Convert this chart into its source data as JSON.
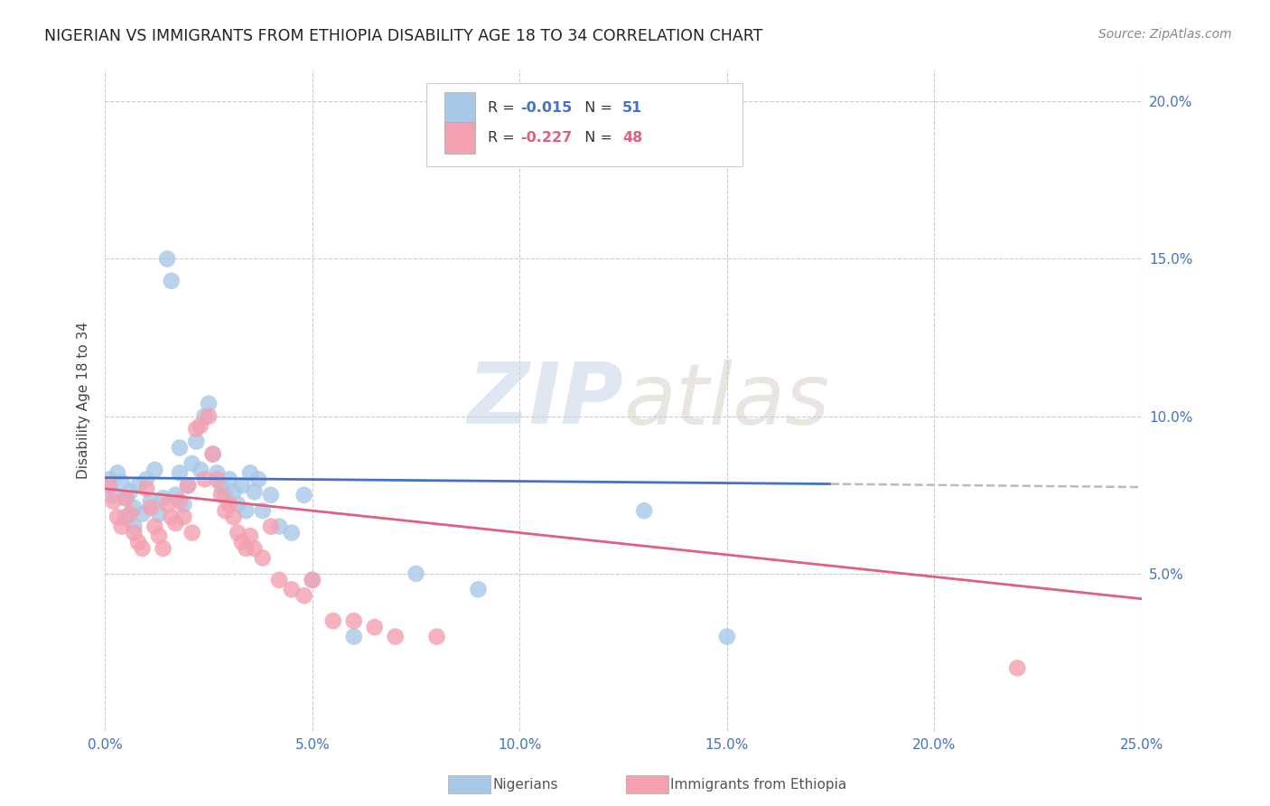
{
  "title": "NIGERIAN VS IMMIGRANTS FROM ETHIOPIA DISABILITY AGE 18 TO 34 CORRELATION CHART",
  "source": "Source: ZipAtlas.com",
  "ylabel": "Disability Age 18 to 34",
  "xlim": [
    0.0,
    0.25
  ],
  "ylim": [
    0.0,
    0.21
  ],
  "xticks": [
    0.0,
    0.05,
    0.1,
    0.15,
    0.2,
    0.25
  ],
  "xticklabels": [
    "0.0%",
    "5.0%",
    "10.0%",
    "15.0%",
    "20.0%",
    "25.0%"
  ],
  "yticks": [
    0.05,
    0.1,
    0.15,
    0.2
  ],
  "yticklabels": [
    "5.0%",
    "10.0%",
    "15.0%",
    "20.0%"
  ],
  "nigerian_color": "#a8c8e8",
  "ethiopia_color": "#f4a0b0",
  "nigerian_line_color": "#4472c4",
  "ethiopia_line_color": "#e06080",
  "dashed_line_color": "#bbbbbb",
  "nigerian_R": -0.015,
  "nigerian_N": 51,
  "ethiopia_R": -0.227,
  "ethiopia_N": 48,
  "legend_label_1": "Nigerians",
  "legend_label_2": "Immigrants from Ethiopia",
  "watermark_zip": "ZIP",
  "watermark_atlas": "atlas",
  "nigerian_x": [
    0.001,
    0.002,
    0.003,
    0.004,
    0.005,
    0.005,
    0.006,
    0.007,
    0.007,
    0.008,
    0.009,
    0.01,
    0.011,
    0.012,
    0.013,
    0.014,
    0.015,
    0.016,
    0.017,
    0.018,
    0.018,
    0.019,
    0.02,
    0.021,
    0.022,
    0.023,
    0.024,
    0.025,
    0.026,
    0.027,
    0.028,
    0.029,
    0.03,
    0.031,
    0.032,
    0.033,
    0.034,
    0.035,
    0.036,
    0.037,
    0.038,
    0.04,
    0.042,
    0.045,
    0.048,
    0.05,
    0.06,
    0.075,
    0.09,
    0.13,
    0.15
  ],
  "nigerian_y": [
    0.08,
    0.075,
    0.082,
    0.079,
    0.074,
    0.068,
    0.076,
    0.071,
    0.065,
    0.078,
    0.069,
    0.08,
    0.073,
    0.083,
    0.069,
    0.074,
    0.15,
    0.143,
    0.075,
    0.082,
    0.09,
    0.072,
    0.078,
    0.085,
    0.092,
    0.083,
    0.1,
    0.104,
    0.088,
    0.082,
    0.078,
    0.075,
    0.08,
    0.076,
    0.072,
    0.078,
    0.07,
    0.082,
    0.076,
    0.08,
    0.07,
    0.075,
    0.065,
    0.063,
    0.075,
    0.048,
    0.03,
    0.05,
    0.045,
    0.07,
    0.03
  ],
  "ethiopia_x": [
    0.001,
    0.002,
    0.003,
    0.004,
    0.005,
    0.006,
    0.007,
    0.008,
    0.009,
    0.01,
    0.011,
    0.012,
    0.013,
    0.014,
    0.015,
    0.016,
    0.017,
    0.018,
    0.019,
    0.02,
    0.021,
    0.022,
    0.023,
    0.024,
    0.025,
    0.026,
    0.027,
    0.028,
    0.029,
    0.03,
    0.031,
    0.032,
    0.033,
    0.034,
    0.035,
    0.036,
    0.038,
    0.04,
    0.042,
    0.045,
    0.048,
    0.05,
    0.055,
    0.06,
    0.065,
    0.07,
    0.08,
    0.22
  ],
  "ethiopia_y": [
    0.078,
    0.073,
    0.068,
    0.065,
    0.074,
    0.069,
    0.063,
    0.06,
    0.058,
    0.077,
    0.071,
    0.065,
    0.062,
    0.058,
    0.072,
    0.068,
    0.066,
    0.073,
    0.068,
    0.078,
    0.063,
    0.096,
    0.097,
    0.08,
    0.1,
    0.088,
    0.08,
    0.075,
    0.07,
    0.072,
    0.068,
    0.063,
    0.06,
    0.058,
    0.062,
    0.058,
    0.055,
    0.065,
    0.048,
    0.045,
    0.043,
    0.048,
    0.035,
    0.035,
    0.033,
    0.03,
    0.03,
    0.02
  ]
}
